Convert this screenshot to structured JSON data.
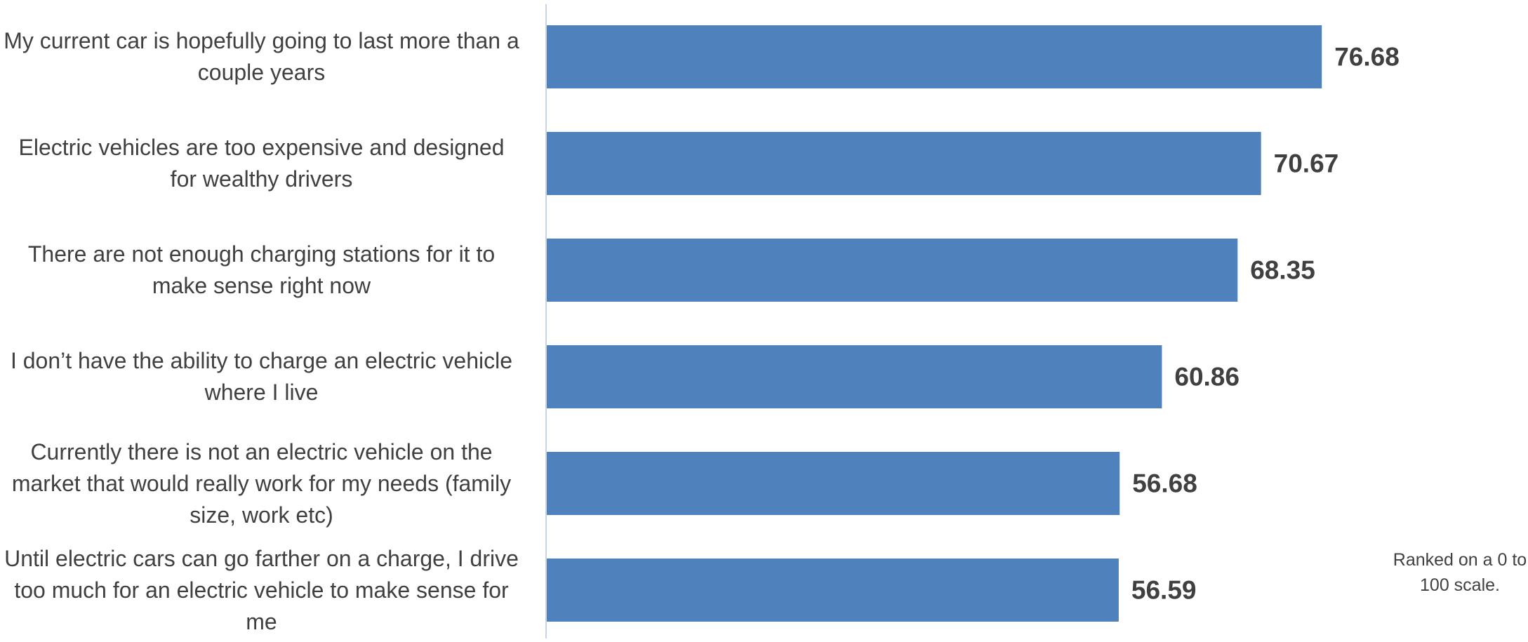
{
  "chart_data": {
    "type": "bar",
    "orientation": "horizontal",
    "categories": [
      "My current car is hopefully going to last more than a couple years",
      "Electric vehicles are too expensive and designed for wealthy drivers",
      "There are not enough charging stations for it to make sense right now",
      "I don’t have the ability to charge an electric vehicle where I live",
      "Currently there is not an electric vehicle on the market that would really work for my needs (family size, work etc)",
      "Until electric cars can go farther on a charge, I drive too much for an electric vehicle to make sense for me"
    ],
    "values": [
      76.68,
      70.67,
      68.35,
      60.86,
      56.68,
      56.59
    ],
    "data_labels": [
      "76.68",
      "70.67",
      "68.35",
      "60.86",
      "56.68",
      "56.59"
    ],
    "xlim": [
      0,
      100
    ],
    "grid": false,
    "legend": "none",
    "bar_color": "#4F81BD",
    "axis_color": "#C5D6EA",
    "label_color": "#404040",
    "annotation": "Ranked on a 0 to 100 scale."
  }
}
